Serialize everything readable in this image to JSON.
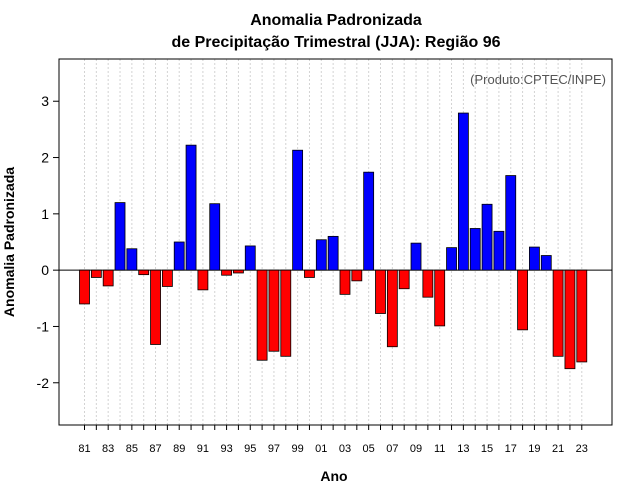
{
  "chart_data": {
    "type": "bar",
    "title": "Anomalia Padronizada",
    "subtitle": "de Precipitação Trimestral (JJA): Região 96",
    "xlabel": "Ano",
    "ylabel": "Anomalia Padronizada",
    "credit": "(Produto:CPTEC/INPE)",
    "ylim": [
      -2.75,
      3.75
    ],
    "yticks": [
      -2,
      -1,
      0,
      1,
      2,
      3
    ],
    "grid": true,
    "positive_color": "#0000ff",
    "negative_color": "#ff0000",
    "categories": [
      "1981",
      "1982",
      "1983",
      "1984",
      "1985",
      "1986",
      "1987",
      "1988",
      "1989",
      "1990",
      "1991",
      "1992",
      "1993",
      "1994",
      "1995",
      "1996",
      "1997",
      "1998",
      "1999",
      "2000",
      "2001",
      "2002",
      "2003",
      "2004",
      "2005",
      "2006",
      "2007",
      "2008",
      "2009",
      "2010",
      "2011",
      "2012",
      "2013",
      "2014",
      "2015",
      "2016",
      "2017",
      "2018",
      "2019",
      "2020",
      "2021",
      "2022",
      "2023"
    ],
    "tick_labels": [
      "81",
      "",
      "83",
      "",
      "85",
      "",
      "87",
      "",
      "89",
      "",
      "91",
      "",
      "93",
      "",
      "95",
      "",
      "97",
      "",
      "99",
      "",
      "01",
      "",
      "03",
      "",
      "05",
      "",
      "07",
      "",
      "09",
      "",
      "11",
      "",
      "13",
      "",
      "15",
      "",
      "17",
      "",
      "19",
      "",
      "21",
      "",
      "23"
    ],
    "values": [
      -0.6,
      -0.13,
      -0.28,
      1.2,
      0.38,
      -0.08,
      -1.32,
      -0.29,
      0.5,
      2.22,
      -0.35,
      1.18,
      -0.09,
      -0.05,
      0.43,
      -1.6,
      -1.44,
      -1.53,
      2.13,
      -0.13,
      0.54,
      0.6,
      -0.43,
      -0.19,
      1.74,
      -0.77,
      -1.36,
      -0.33,
      0.48,
      -0.48,
      -0.99,
      0.4,
      2.79,
      0.74,
      1.17,
      0.69,
      1.68,
      -1.06,
      0.41,
      0.26,
      -1.53,
      -1.75,
      -1.63
    ]
  }
}
